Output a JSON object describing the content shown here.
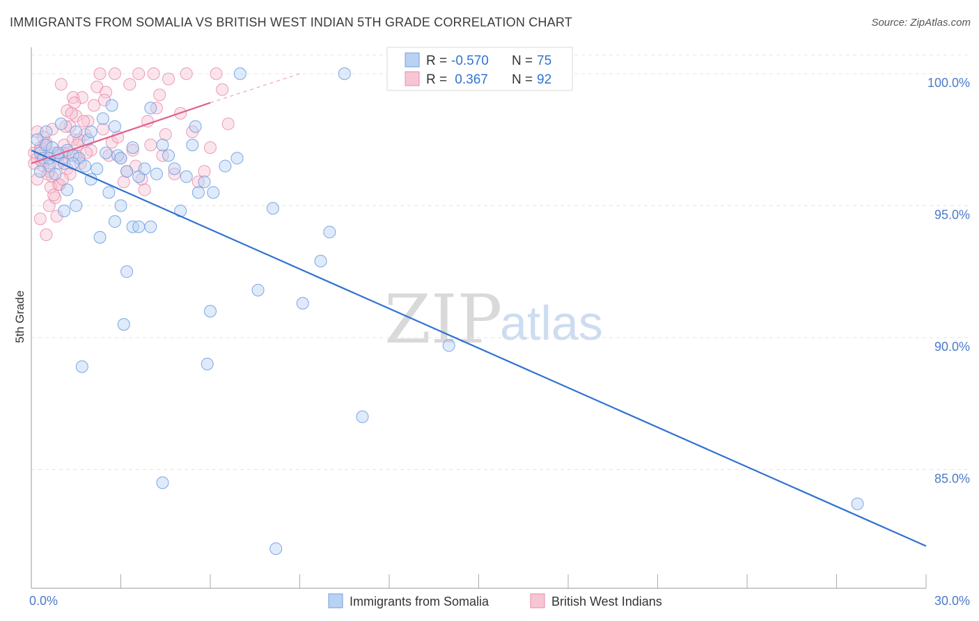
{
  "title": "IMMIGRANTS FROM SOMALIA VS BRITISH WEST INDIAN 5TH GRADE CORRELATION CHART",
  "source": "Source: ZipAtlas.com",
  "watermark": {
    "zip": "ZIP",
    "atlas": "atlas"
  },
  "colors": {
    "blue": "#6f9fe0",
    "blue_fill": "#b9d1f3",
    "blue_line": "#2f72d0",
    "pink": "#e98aaa",
    "pink_fill": "#f7c6d5",
    "pink_line": "#e0608d",
    "axis_label": "#4a7ac9"
  },
  "legend": {
    "rows": [
      {
        "r_label": "R = ",
        "r_value": "-0.570",
        "n_label": "N = ",
        "n_value": "75"
      },
      {
        "r_label": "R = ",
        "r_value": " 0.367",
        "n_label": "N = ",
        "n_value": "92"
      }
    ]
  },
  "chart_data": {
    "type": "scatter",
    "title": "IMMIGRANTS FROM SOMALIA VS BRITISH WEST INDIAN 5TH GRADE CORRELATION CHART",
    "xlabel": "",
    "ylabel": "5th Grade",
    "xlim": [
      0,
      30
    ],
    "ylim": [
      80.5,
      101.0
    ],
    "x_tick_labels": [
      "0.0%",
      "30.0%"
    ],
    "y_ticks": [
      85,
      90,
      95,
      100
    ],
    "y_tick_labels": [
      "85.0%",
      "90.0%",
      "95.0%",
      "100.0%"
    ],
    "series": [
      {
        "name": "Immigrants from Somalia",
        "R": -0.57,
        "N": 75,
        "trend": {
          "x": [
            0.0,
            30.0
          ],
          "y": [
            97.1,
            82.1
          ]
        },
        "points": [
          [
            0.2,
            97.5
          ],
          [
            0.3,
            97.0
          ],
          [
            0.4,
            96.8
          ],
          [
            0.5,
            97.3
          ],
          [
            0.6,
            96.5
          ],
          [
            0.7,
            97.2
          ],
          [
            0.8,
            96.2
          ],
          [
            0.9,
            96.9
          ],
          [
            1.0,
            98.1
          ],
          [
            1.1,
            96.6
          ],
          [
            1.2,
            97.1
          ],
          [
            1.4,
            96.9
          ],
          [
            1.5,
            97.8
          ],
          [
            1.6,
            96.8
          ],
          [
            1.8,
            96.5
          ],
          [
            1.9,
            97.5
          ],
          [
            2.0,
            97.8
          ],
          [
            2.2,
            96.4
          ],
          [
            2.4,
            98.3
          ],
          [
            2.5,
            97.0
          ],
          [
            2.7,
            98.8
          ],
          [
            2.8,
            98.0
          ],
          [
            2.9,
            96.9
          ],
          [
            3.0,
            96.8
          ],
          [
            3.2,
            96.3
          ],
          [
            3.4,
            97.2
          ],
          [
            3.6,
            96.1
          ],
          [
            3.8,
            96.4
          ],
          [
            4.0,
            94.2
          ],
          [
            4.2,
            96.2
          ],
          [
            4.4,
            97.3
          ],
          [
            4.6,
            96.9
          ],
          [
            4.8,
            96.4
          ],
          [
            5.0,
            94.8
          ],
          [
            5.2,
            96.1
          ],
          [
            5.4,
            97.3
          ],
          [
            5.6,
            95.5
          ],
          [
            5.8,
            95.9
          ],
          [
            6.1,
            95.5
          ],
          [
            6.5,
            96.5
          ],
          [
            6.9,
            96.8
          ],
          [
            0.5,
            97.8
          ],
          [
            1.2,
            95.6
          ],
          [
            1.5,
            95.0
          ],
          [
            2.0,
            96.0
          ],
          [
            2.3,
            93.8
          ],
          [
            2.6,
            95.5
          ],
          [
            2.8,
            94.4
          ],
          [
            3.0,
            95.0
          ],
          [
            3.4,
            94.2
          ],
          [
            3.6,
            94.2
          ],
          [
            3.2,
            92.5
          ],
          [
            5.5,
            98.0
          ],
          [
            7.0,
            100.0
          ],
          [
            10.5,
            100.0
          ],
          [
            1.1,
            94.8
          ],
          [
            1.4,
            96.6
          ],
          [
            4.0,
            98.7
          ],
          [
            3.1,
            90.5
          ],
          [
            4.4,
            84.5
          ],
          [
            1.7,
            88.9
          ],
          [
            6.0,
            91.0
          ],
          [
            7.6,
            91.8
          ],
          [
            5.9,
            89.0
          ],
          [
            8.1,
            94.9
          ],
          [
            10.0,
            94.0
          ],
          [
            9.7,
            92.9
          ],
          [
            9.1,
            91.3
          ],
          [
            11.1,
            87.0
          ],
          [
            14.0,
            89.7
          ],
          [
            8.2,
            82.0
          ],
          [
            27.7,
            83.7
          ],
          [
            0.3,
            96.3
          ],
          [
            0.6,
            96.8
          ],
          [
            0.9,
            97.0
          ]
        ]
      },
      {
        "name": "British West Indians",
        "R": 0.367,
        "N": 92,
        "trend": {
          "x": [
            0.0,
            6.0
          ],
          "y": [
            96.6,
            98.9
          ]
        },
        "trend_ext": {
          "x": [
            6.0,
            9.0
          ],
          "y": [
            98.9,
            100.0
          ]
        },
        "points": [
          [
            0.1,
            97.0
          ],
          [
            0.2,
            96.8
          ],
          [
            0.3,
            97.2
          ],
          [
            0.4,
            96.5
          ],
          [
            0.5,
            97.4
          ],
          [
            0.6,
            96.9
          ],
          [
            0.7,
            96.1
          ],
          [
            0.8,
            97.0
          ],
          [
            0.9,
            95.8
          ],
          [
            1.0,
            96.7
          ],
          [
            1.1,
            97.3
          ],
          [
            1.2,
            96.4
          ],
          [
            1.3,
            98.0
          ],
          [
            1.4,
            97.5
          ],
          [
            1.5,
            98.4
          ],
          [
            1.6,
            96.8
          ],
          [
            1.7,
            99.1
          ],
          [
            1.8,
            97.7
          ],
          [
            1.9,
            98.2
          ],
          [
            2.0,
            97.1
          ],
          [
            2.1,
            98.8
          ],
          [
            2.2,
            99.5
          ],
          [
            2.3,
            100.0
          ],
          [
            2.4,
            97.9
          ],
          [
            2.5,
            99.3
          ],
          [
            2.6,
            96.9
          ],
          [
            2.7,
            97.4
          ],
          [
            2.8,
            100.0
          ],
          [
            2.9,
            97.6
          ],
          [
            3.0,
            96.8
          ],
          [
            3.1,
            95.9
          ],
          [
            3.2,
            96.3
          ],
          [
            3.3,
            99.6
          ],
          [
            3.4,
            97.1
          ],
          [
            3.5,
            96.5
          ],
          [
            3.6,
            100.0
          ],
          [
            3.7,
            96.0
          ],
          [
            3.8,
            95.6
          ],
          [
            3.9,
            98.2
          ],
          [
            4.0,
            97.3
          ],
          [
            4.1,
            100.0
          ],
          [
            4.2,
            98.7
          ],
          [
            4.3,
            99.2
          ],
          [
            4.4,
            96.9
          ],
          [
            4.5,
            97.7
          ],
          [
            4.6,
            99.8
          ],
          [
            4.8,
            96.2
          ],
          [
            5.0,
            98.5
          ],
          [
            5.2,
            100.0
          ],
          [
            5.4,
            97.8
          ],
          [
            5.6,
            95.9
          ],
          [
            5.8,
            96.3
          ],
          [
            6.0,
            97.2
          ],
          [
            6.2,
            100.0
          ],
          [
            6.4,
            99.4
          ],
          [
            6.6,
            98.1
          ],
          [
            0.3,
            94.5
          ],
          [
            0.5,
            93.9
          ],
          [
            0.6,
            95.0
          ],
          [
            0.8,
            95.3
          ],
          [
            1.0,
            99.6
          ],
          [
            1.2,
            98.6
          ],
          [
            1.4,
            99.1
          ],
          [
            1.6,
            97.5
          ],
          [
            0.2,
            97.8
          ],
          [
            0.4,
            97.6
          ],
          [
            0.6,
            96.3
          ],
          [
            0.7,
            97.9
          ],
          [
            0.9,
            96.6
          ],
          [
            1.1,
            97.0
          ],
          [
            1.3,
            96.2
          ],
          [
            1.5,
            96.9
          ],
          [
            0.1,
            96.6
          ],
          [
            0.2,
            96.0
          ],
          [
            0.3,
            97.1
          ],
          [
            0.35,
            96.7
          ],
          [
            0.45,
            97.3
          ],
          [
            0.55,
            96.2
          ],
          [
            0.65,
            95.7
          ],
          [
            0.75,
            95.4
          ],
          [
            0.85,
            94.6
          ],
          [
            0.95,
            95.8
          ],
          [
            1.05,
            96.0
          ],
          [
            1.15,
            98.0
          ],
          [
            1.25,
            97.0
          ],
          [
            1.35,
            98.5
          ],
          [
            1.45,
            98.9
          ],
          [
            1.55,
            97.3
          ],
          [
            1.65,
            96.6
          ],
          [
            1.75,
            98.2
          ],
          [
            1.85,
            97.0
          ],
          [
            2.45,
            99.0
          ]
        ]
      }
    ]
  },
  "bottom_legend": {
    "blue_label": "Immigrants from Somalia",
    "pink_label": "British West Indians"
  }
}
